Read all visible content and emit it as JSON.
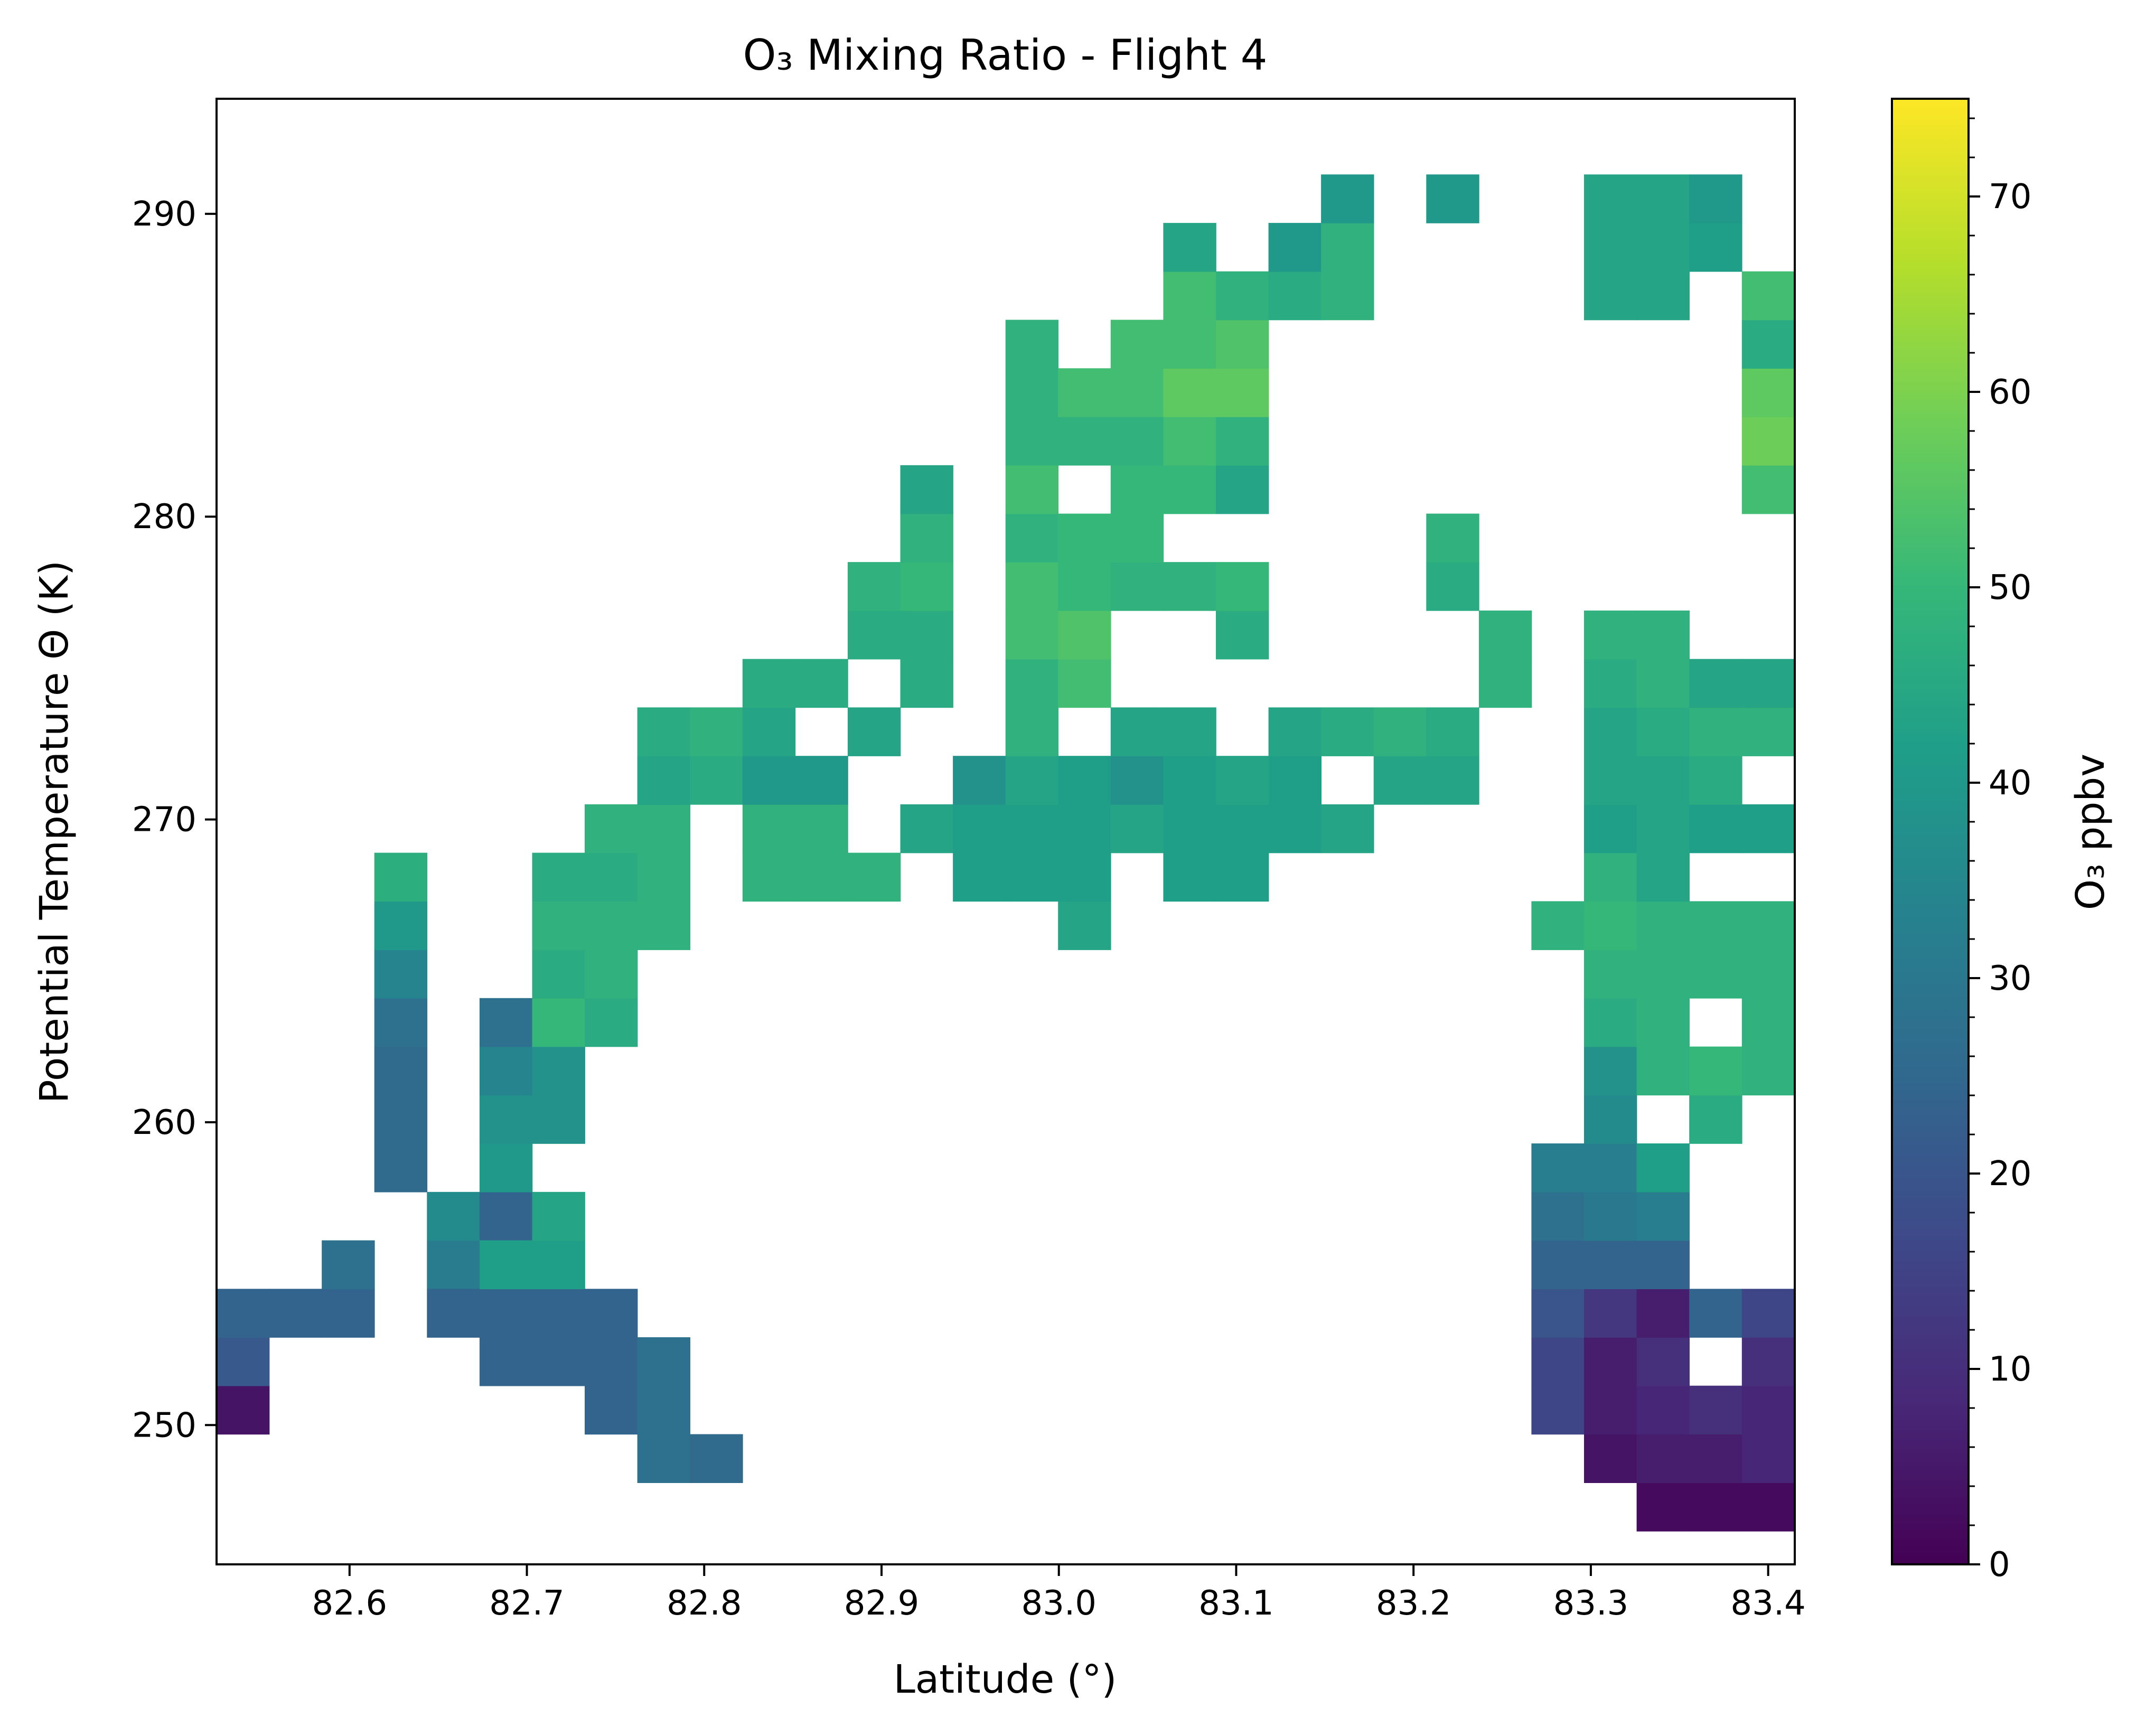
{
  "chart_data": {
    "type": "heatmap",
    "title": "O₃ Mixing Ratio - Flight 4",
    "xlabel": "Latitude (°)",
    "ylabel": "Potential Temperature Θ (K)",
    "colorbar_label": "O₃ ppbv",
    "colormap": "viridis",
    "colormap_stops": [
      "#440154",
      "#482878",
      "#3e4989",
      "#31688e",
      "#26828e",
      "#1f9e89",
      "#35b779",
      "#6ece58",
      "#b5de2b",
      "#fde725"
    ],
    "value_range": [
      0,
      75
    ],
    "xlim": [
      82.525,
      83.415
    ],
    "ylim": [
      245.4,
      293.8
    ],
    "x_ticks": [
      "82.6",
      "82.7",
      "82.8",
      "82.9",
      "83.0",
      "83.1",
      "83.2",
      "83.3",
      "83.4"
    ],
    "y_ticks": [
      "250",
      "260",
      "270",
      "280",
      "290"
    ],
    "colorbar_ticks": [
      "0",
      "10",
      "20",
      "30",
      "40",
      "50",
      "60",
      "70"
    ],
    "grid": false,
    "bin": {
      "x_origin": 82.525,
      "x_width": 0.02966,
      "y_origin": 246.5,
      "y_height": 1.6
    },
    "cells": [
      [
        0,
        2,
        4
      ],
      [
        0,
        3,
        21
      ],
      [
        0,
        4,
        24
      ],
      [
        1,
        4,
        24
      ],
      [
        2,
        4,
        24
      ],
      [
        2,
        5,
        28
      ],
      [
        3,
        8,
        26
      ],
      [
        3,
        7,
        26
      ],
      [
        3,
        9,
        26
      ],
      [
        3,
        10,
        28
      ],
      [
        3,
        11,
        34
      ],
      [
        3,
        12,
        40
      ],
      [
        3,
        13,
        47
      ],
      [
        4,
        5,
        31
      ],
      [
        4,
        6,
        36
      ],
      [
        4,
        4,
        24
      ],
      [
        5,
        3,
        24
      ],
      [
        5,
        4,
        24
      ],
      [
        5,
        6,
        24
      ],
      [
        5,
        5,
        42
      ],
      [
        5,
        7,
        40
      ],
      [
        5,
        8,
        38
      ],
      [
        5,
        9,
        34
      ],
      [
        5,
        10,
        28
      ],
      [
        6,
        3,
        24
      ],
      [
        6,
        4,
        24
      ],
      [
        6,
        5,
        42
      ],
      [
        6,
        6,
        44
      ],
      [
        6,
        8,
        38
      ],
      [
        6,
        9,
        38
      ],
      [
        6,
        10,
        50
      ],
      [
        6,
        11,
        46
      ],
      [
        6,
        12,
        48
      ],
      [
        6,
        13,
        46
      ],
      [
        7,
        2,
        24
      ],
      [
        7,
        3,
        24
      ],
      [
        7,
        4,
        24
      ],
      [
        7,
        10,
        46
      ],
      [
        7,
        11,
        48
      ],
      [
        7,
        12,
        48
      ],
      [
        7,
        13,
        46
      ],
      [
        7,
        14,
        48
      ],
      [
        8,
        1,
        28
      ],
      [
        8,
        2,
        28
      ],
      [
        8,
        3,
        28
      ],
      [
        8,
        12,
        48
      ],
      [
        8,
        13,
        48
      ],
      [
        8,
        14,
        48
      ],
      [
        8,
        15,
        44
      ],
      [
        8,
        16,
        46
      ],
      [
        9,
        1,
        26
      ],
      [
        9,
        15,
        46
      ],
      [
        9,
        16,
        48
      ],
      [
        10,
        13,
        48
      ],
      [
        10,
        14,
        48
      ],
      [
        10,
        15,
        40
      ],
      [
        10,
        16,
        44
      ],
      [
        10,
        17,
        46
      ],
      [
        11,
        13,
        48
      ],
      [
        11,
        14,
        48
      ],
      [
        11,
        15,
        40
      ],
      [
        11,
        17,
        46
      ],
      [
        12,
        13,
        48
      ],
      [
        12,
        16,
        44
      ],
      [
        12,
        18,
        46
      ],
      [
        12,
        19,
        48
      ],
      [
        13,
        14,
        44
      ],
      [
        13,
        17,
        46
      ],
      [
        13,
        18,
        46
      ],
      [
        13,
        19,
        50
      ],
      [
        13,
        20,
        48
      ],
      [
        13,
        21,
        44
      ],
      [
        14,
        13,
        42
      ],
      [
        14,
        14,
        42
      ],
      [
        14,
        15,
        38
      ],
      [
        15,
        13,
        42
      ],
      [
        15,
        14,
        42
      ],
      [
        15,
        15,
        44
      ],
      [
        15,
        16,
        48
      ],
      [
        15,
        17,
        48
      ],
      [
        15,
        18,
        52
      ],
      [
        15,
        19,
        52
      ],
      [
        15,
        20,
        48
      ],
      [
        15,
        21,
        52
      ],
      [
        15,
        22,
        48
      ],
      [
        15,
        23,
        48
      ],
      [
        15,
        24,
        48
      ],
      [
        16,
        12,
        44
      ],
      [
        16,
        13,
        42
      ],
      [
        16,
        14,
        42
      ],
      [
        16,
        15,
        42
      ],
      [
        16,
        17,
        52
      ],
      [
        16,
        18,
        54
      ],
      [
        16,
        19,
        50
      ],
      [
        16,
        20,
        50
      ],
      [
        16,
        22,
        48
      ],
      [
        16,
        23,
        52
      ],
      [
        17,
        14,
        44
      ],
      [
        17,
        15,
        38
      ],
      [
        17,
        16,
        44
      ],
      [
        17,
        19,
        48
      ],
      [
        17,
        20,
        50
      ],
      [
        17,
        21,
        50
      ],
      [
        17,
        22,
        48
      ],
      [
        17,
        23,
        52
      ],
      [
        17,
        24,
        52
      ],
      [
        18,
        13,
        42
      ],
      [
        18,
        14,
        42
      ],
      [
        18,
        15,
        42
      ],
      [
        18,
        16,
        44
      ],
      [
        18,
        19,
        48
      ],
      [
        18,
        21,
        50
      ],
      [
        18,
        22,
        52
      ],
      [
        18,
        23,
        56
      ],
      [
        18,
        24,
        52
      ],
      [
        18,
        25,
        52
      ],
      [
        18,
        26,
        44
      ],
      [
        19,
        13,
        42
      ],
      [
        19,
        14,
        42
      ],
      [
        19,
        15,
        44
      ],
      [
        19,
        18,
        46
      ],
      [
        19,
        19,
        50
      ],
      [
        19,
        21,
        44
      ],
      [
        19,
        22,
        48
      ],
      [
        19,
        23,
        56
      ],
      [
        19,
        24,
        54
      ],
      [
        19,
        25,
        48
      ],
      [
        20,
        14,
        42
      ],
      [
        20,
        15,
        42
      ],
      [
        20,
        16,
        44
      ],
      [
        20,
        25,
        46
      ],
      [
        20,
        26,
        40
      ],
      [
        21,
        14,
        44
      ],
      [
        21,
        16,
        46
      ],
      [
        21,
        25,
        48
      ],
      [
        21,
        26,
        48
      ],
      [
        21,
        27,
        40
      ],
      [
        22,
        15,
        44
      ],
      [
        22,
        16,
        48
      ],
      [
        23,
        15,
        44
      ],
      [
        23,
        16,
        46
      ],
      [
        23,
        19,
        46
      ],
      [
        23,
        20,
        48
      ],
      [
        23,
        27,
        40
      ],
      [
        24,
        17,
        48
      ],
      [
        24,
        18,
        48
      ],
      [
        25,
        2,
        16
      ],
      [
        25,
        3,
        16
      ],
      [
        25,
        4,
        20
      ],
      [
        25,
        5,
        24
      ],
      [
        25,
        6,
        28
      ],
      [
        25,
        7,
        32
      ],
      [
        25,
        12,
        48
      ],
      [
        26,
        1,
        4
      ],
      [
        26,
        2,
        6
      ],
      [
        26,
        3,
        6
      ],
      [
        26,
        4,
        12
      ],
      [
        26,
        5,
        24
      ],
      [
        26,
        6,
        30
      ],
      [
        26,
        7,
        32
      ],
      [
        26,
        8,
        36
      ],
      [
        26,
        9,
        38
      ],
      [
        26,
        10,
        46
      ],
      [
        26,
        11,
        48
      ],
      [
        26,
        12,
        50
      ],
      [
        26,
        13,
        48
      ],
      [
        26,
        14,
        42
      ],
      [
        26,
        15,
        44
      ],
      [
        26,
        16,
        44
      ],
      [
        26,
        17,
        46
      ],
      [
        26,
        18,
        48
      ],
      [
        26,
        25,
        44
      ],
      [
        26,
        26,
        44
      ],
      [
        26,
        27,
        44
      ],
      [
        27,
        0,
        2
      ],
      [
        27,
        1,
        6
      ],
      [
        27,
        2,
        8
      ],
      [
        27,
        3,
        10
      ],
      [
        27,
        4,
        6
      ],
      [
        27,
        5,
        24
      ],
      [
        27,
        6,
        32
      ],
      [
        27,
        7,
        42
      ],
      [
        27,
        9,
        48
      ],
      [
        27,
        10,
        48
      ],
      [
        27,
        11,
        48
      ],
      [
        27,
        12,
        48
      ],
      [
        27,
        13,
        44
      ],
      [
        27,
        14,
        44
      ],
      [
        27,
        15,
        44
      ],
      [
        27,
        16,
        46
      ],
      [
        27,
        17,
        48
      ],
      [
        27,
        18,
        48
      ],
      [
        27,
        25,
        44
      ],
      [
        27,
        26,
        44
      ],
      [
        27,
        27,
        44
      ],
      [
        28,
        0,
        2
      ],
      [
        28,
        1,
        6
      ],
      [
        28,
        2,
        10
      ],
      [
        28,
        4,
        24
      ],
      [
        28,
        8,
        46
      ],
      [
        28,
        9,
        50
      ],
      [
        28,
        11,
        48
      ],
      [
        28,
        12,
        48
      ],
      [
        28,
        14,
        42
      ],
      [
        28,
        15,
        46
      ],
      [
        28,
        16,
        48
      ],
      [
        28,
        17,
        44
      ],
      [
        28,
        26,
        42
      ],
      [
        28,
        27,
        40
      ],
      [
        29,
        0,
        2
      ],
      [
        29,
        1,
        8
      ],
      [
        29,
        2,
        8
      ],
      [
        29,
        3,
        10
      ],
      [
        29,
        4,
        16
      ],
      [
        29,
        9,
        48
      ],
      [
        29,
        10,
        48
      ],
      [
        29,
        11,
        48
      ],
      [
        29,
        12,
        48
      ],
      [
        29,
        14,
        42
      ],
      [
        29,
        16,
        48
      ],
      [
        29,
        17,
        44
      ],
      [
        29,
        21,
        52
      ],
      [
        29,
        22,
        58
      ],
      [
        29,
        23,
        56
      ],
      [
        29,
        24,
        46
      ],
      [
        29,
        25,
        52
      ]
    ],
    "cells_columns": [
      "col",
      "row",
      "value"
    ]
  }
}
